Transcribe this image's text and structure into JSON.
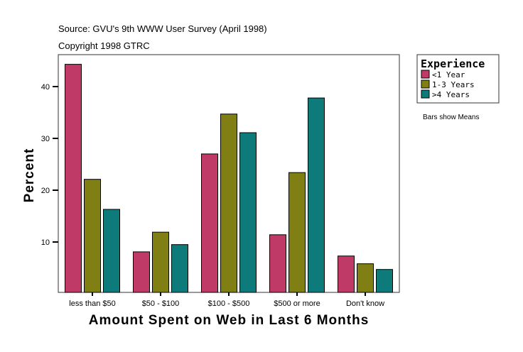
{
  "chart_data": {
    "type": "bar",
    "source_note": "Source: GVU's 9th WWW User Survey (April 1998)",
    "copyright_note": "Copyright 1998 GTRC",
    "xlabel": "Amount Spent on Web in Last 6 Months",
    "ylabel": "Percent",
    "categories": [
      "less than $50",
      "$50 - $100",
      "$100 - $500",
      "$500 or more",
      "Don't know"
    ],
    "yticks": [
      10,
      20,
      30,
      40
    ],
    "ylim": [
      0,
      45.5
    ],
    "grid": false,
    "legend": {
      "title": "Experience",
      "placement": "right"
    },
    "footnote": "Bars show Means",
    "series": [
      {
        "name": "<1 Year",
        "color": "#BF3A66",
        "values": [
          44.3,
          8.1,
          27.0,
          11.4,
          7.3
        ]
      },
      {
        "name": "1-3 Years",
        "color": "#7F7F14",
        "values": [
          22.1,
          11.9,
          34.7,
          23.4,
          5.8
        ]
      },
      {
        "name": ">4 Years",
        "color": "#0E7B7B",
        "values": [
          16.3,
          9.5,
          31.1,
          37.8,
          4.7
        ]
      }
    ]
  }
}
